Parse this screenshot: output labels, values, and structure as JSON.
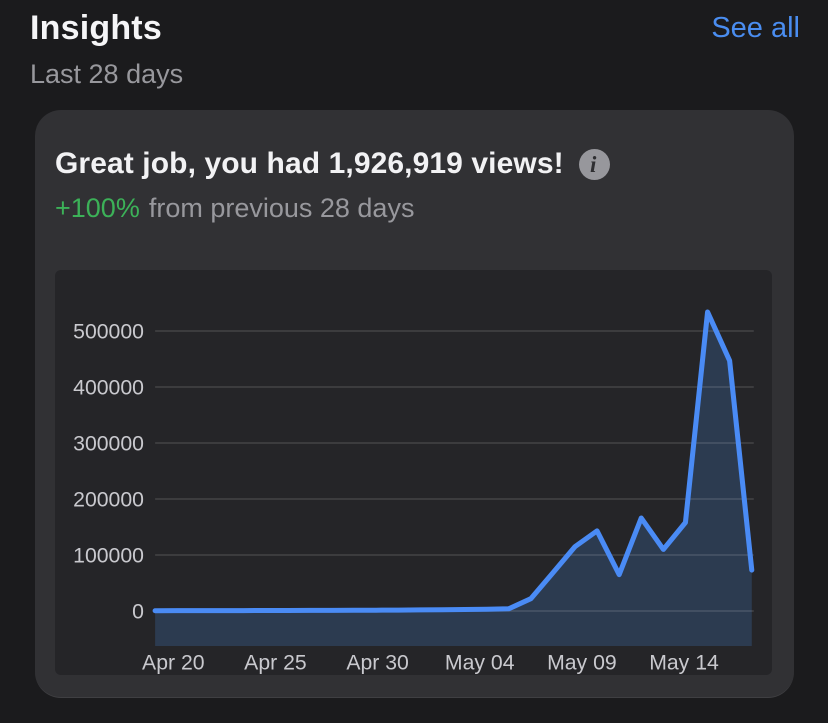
{
  "header": {
    "title": "Insights",
    "see_all_label": "See all",
    "period": "Last 28 days"
  },
  "card": {
    "headline": "Great job, you had 1,926,919 views!",
    "views_count": "1,926,919",
    "info_icon_glyph": "i",
    "delta": "+100%",
    "delta_suffix": "from previous 28 days"
  },
  "colors": {
    "page_bg": "#1b1b1d",
    "card_bg": "#313134",
    "chart_bg": "#252528",
    "text_primary": "#f2f2f4",
    "text_secondary": "#98989d",
    "axis_label": "#c9c9ce",
    "see_all_blue": "#4a8df0",
    "delta_green": "#3cb158",
    "line": "#4a8bf5",
    "area_fill": "#2c3b50",
    "gridline": "rgba(255,255,255,0.14)"
  },
  "chart_data": {
    "type": "area",
    "title": "",
    "xlabel": "",
    "ylabel": "",
    "legend": "none",
    "grid": "horizontal",
    "ylim": [
      0,
      560000
    ],
    "x": [
      "Apr 20",
      "Apr 21",
      "Apr 22",
      "Apr 23",
      "Apr 24",
      "Apr 25",
      "Apr 26",
      "Apr 27",
      "Apr 28",
      "Apr 29",
      "Apr 30",
      "May 01",
      "May 02",
      "May 03",
      "May 04",
      "May 05",
      "May 06",
      "May 07",
      "May 08",
      "May 09",
      "May 10",
      "May 11",
      "May 12",
      "May 13",
      "May 14",
      "May 15",
      "May 16",
      "May 17"
    ],
    "values": [
      600,
      700,
      700,
      800,
      800,
      900,
      900,
      1000,
      1100,
      1200,
      1400,
      1600,
      1900,
      2200,
      2600,
      3000,
      4000,
      22000,
      68000,
      115000,
      143000,
      65000,
      166000,
      110000,
      158000,
      534000,
      447000,
      73000
    ],
    "y_ticks": [
      0,
      100000,
      200000,
      300000,
      400000,
      500000
    ],
    "y_tick_labels": [
      "0",
      "100000",
      "200000",
      "300000",
      "400000",
      "500000"
    ],
    "x_tick_labels": [
      "Apr 20",
      "Apr 25",
      "Apr 30",
      "May 04",
      "May 09",
      "May 14"
    ]
  }
}
